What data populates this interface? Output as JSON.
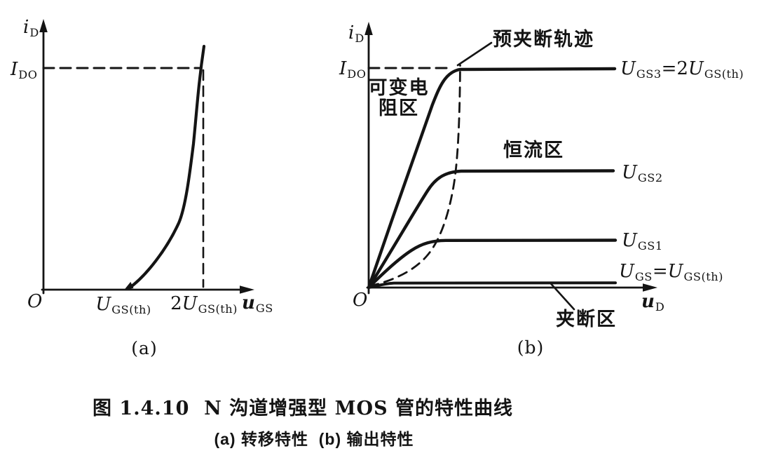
{
  "figure": {
    "caption": "图 1.4.10  N 沟道增强型 MOS 管的特性曲线",
    "subcaption": "(a) 转移特性  (b) 输出特性",
    "panel_a": "(a)",
    "panel_b": "(b)"
  },
  "labels_cn": {
    "pre_pinchoff_locus": "预夹断轨迹",
    "variable_resistance_region": "可变电\n阻区",
    "constant_current_region": "恒流区",
    "pinchoff_region": "夹断区"
  },
  "math": {
    "i_d": [
      [
        "i",
        "it"
      ],
      [
        "D",
        "sub"
      ]
    ],
    "I_DO": [
      [
        "I",
        "it"
      ],
      [
        "DO",
        "sub"
      ]
    ],
    "origin": [
      [
        "O",
        "it"
      ]
    ],
    "u_gs": [
      [
        "u",
        "bit"
      ],
      [
        "GS",
        "sub"
      ]
    ],
    "u_d": [
      [
        "u",
        "bit"
      ],
      [
        "D",
        "sub"
      ]
    ],
    "U_gsth": [
      [
        "U",
        "it"
      ],
      [
        "GS(th)",
        "sub"
      ]
    ],
    "two_U_gsth": [
      [
        "2",
        "n"
      ],
      [
        "U",
        "it"
      ],
      [
        "GS(th)",
        "sub"
      ]
    ],
    "U_gs3_eq": [
      [
        "U",
        "it"
      ],
      [
        "GS3",
        "sub"
      ],
      [
        "=2",
        "n"
      ],
      [
        "U",
        "it"
      ],
      [
        "GS(th)",
        "sub"
      ]
    ],
    "U_gs2": [
      [
        "U",
        "it"
      ],
      [
        "GS2",
        "sub"
      ]
    ],
    "U_gs1": [
      [
        "U",
        "it"
      ],
      [
        "GS1",
        "sub"
      ]
    ],
    "U_gs_eq_th": [
      [
        "U",
        "it"
      ],
      [
        "GS",
        "sub"
      ],
      [
        "=",
        "n"
      ],
      [
        "U",
        "it"
      ],
      [
        "GS(th)",
        "sub"
      ]
    ]
  },
  "chart_data": [
    {
      "type": "line",
      "panel": "a",
      "title": "转移特性 (transfer characteristic of N-channel enhancement MOSFET)",
      "xlabel": "u_GS",
      "ylabel": "i_D",
      "x_ticks": [
        "O",
        "U_GS(th)",
        "2U_GS(th)"
      ],
      "y_ticks": [
        "I_DO"
      ],
      "grid": false,
      "series": [
        {
          "name": "i_D–u_GS curve",
          "x_unit": "multiples of U_GS(th)",
          "y_unit": "multiples of I_DO",
          "points": [
            [
              1.0,
              0.0
            ],
            [
              1.2,
              0.05
            ],
            [
              1.4,
              0.17
            ],
            [
              1.6,
              0.38
            ],
            [
              1.8,
              0.66
            ],
            [
              2.0,
              1.0
            ],
            [
              2.05,
              1.1
            ]
          ]
        }
      ],
      "annotations": [
        "dashed horizontal guide at i_D = I_DO",
        "dashed vertical guide at u_GS = 2U_GS(th)",
        "curve starts on axis at u_GS = U_GS(th)"
      ]
    },
    {
      "type": "line",
      "panel": "b",
      "title": "输出特性 (output characteristics)",
      "xlabel": "u_D",
      "ylabel": "i_D",
      "x_ticks": [
        "O"
      ],
      "y_ticks": [
        "I_DO"
      ],
      "grid": false,
      "series": [
        {
          "name": "U_GS3 = 2U_GS(th)",
          "saturation_level_in_IDO": 1.0
        },
        {
          "name": "U_GS2",
          "saturation_level_in_IDO": 0.53
        },
        {
          "name": "U_GS1",
          "saturation_level_in_IDO": 0.22
        },
        {
          "name": "U_GS = U_GS(th)",
          "saturation_level_in_IDO": 0.02
        }
      ],
      "locus": {
        "name": "预夹断轨迹",
        "style": "dashed",
        "shape": "parabola through the knee of each output curve"
      },
      "regions": [
        "可变电阻区",
        "恒流区",
        "夹断区"
      ],
      "legend_position": "right of each curve"
    }
  ]
}
